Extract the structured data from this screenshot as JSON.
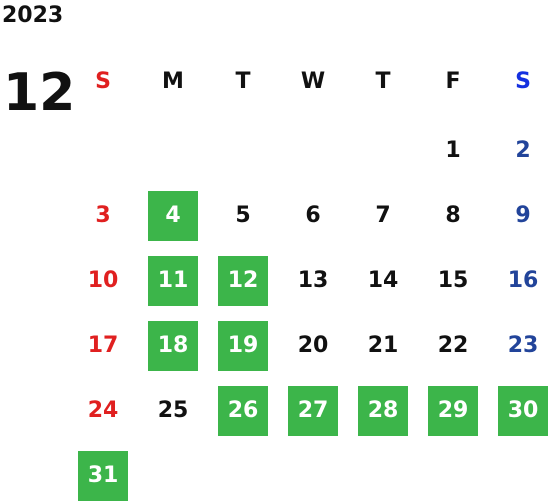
{
  "calendar": {
    "year": "2023",
    "month": "12",
    "weekdays": [
      "S",
      "M",
      "T",
      "W",
      "T",
      "F",
      "S"
    ],
    "weeks": [
      [
        null,
        null,
        null,
        null,
        null,
        1,
        2
      ],
      [
        3,
        4,
        5,
        6,
        7,
        8,
        9
      ],
      [
        10,
        11,
        12,
        13,
        14,
        15,
        16
      ],
      [
        17,
        18,
        19,
        20,
        21,
        22,
        23
      ],
      [
        24,
        25,
        26,
        27,
        28,
        29,
        30
      ],
      [
        31,
        null,
        null,
        null,
        null,
        null,
        null
      ]
    ],
    "highlighted": [
      4,
      11,
      12,
      18,
      19,
      26,
      27,
      28,
      29,
      30,
      31
    ]
  }
}
